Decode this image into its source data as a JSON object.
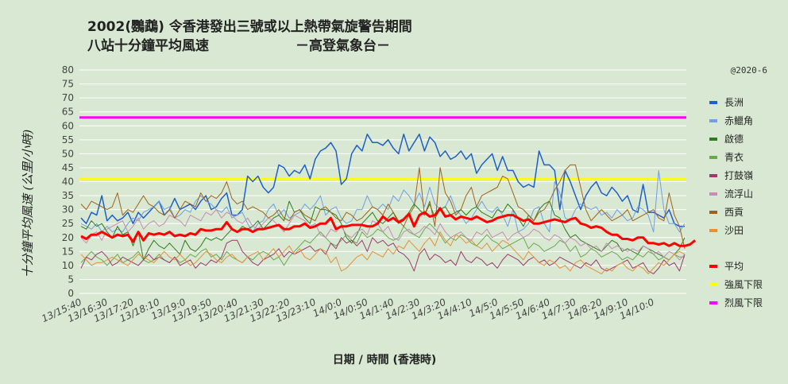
{
  "title_line1": "2002(鸚鵡)  令香港發出三號或以上熱帶氣旋警告期間",
  "title_line2": "八站十分鐘平均風速",
  "title_org": "－高登氣象台－",
  "watermark": "@2020-6",
  "colors": {
    "background": "#d8e8d2",
    "grid": "#ffffff",
    "strong_threshold": "#ffff00",
    "gale_threshold": "#ff00ff",
    "average": "#ff0000"
  },
  "chart_data": {
    "type": "line",
    "ylabel": "十分鐘平均風速 (公里/小時)",
    "xlabel": "日期 / 時間 (香港時)",
    "ylim": [
      0,
      80
    ],
    "yticks": [
      0,
      5,
      10,
      15,
      20,
      25,
      30,
      35,
      40,
      45,
      50,
      55,
      60,
      65,
      70,
      75,
      80
    ],
    "grid": true,
    "legend_position": "right",
    "xtick_labels": [
      "13/15:40",
      "13/16:30",
      "13/17:20",
      "13/18:10",
      "13/19:0",
      "13/19:50",
      "13/20:40",
      "13/21:30",
      "13/22:20",
      "13/23:10",
      "14/0:0",
      "14/0:50",
      "14/1:40",
      "14/2:30",
      "14/3:20",
      "14/4:10",
      "14/5:0",
      "14/5:50",
      "14/6:40",
      "14/7:30",
      "14/8:20",
      "14/9:10",
      "14/10:0"
    ],
    "x_start_label": "13/15:40",
    "x_step_minutes": 10,
    "thresholds": [
      {
        "name": "強風下限",
        "value": 41,
        "color": "#ffff00"
      },
      {
        "name": "烈風下限",
        "value": 63,
        "color": "#ff00ff"
      }
    ],
    "series": [
      {
        "name": "長洲",
        "color": "#1f5fc8",
        "width": 1.5,
        "values": [
          27,
          25,
          29,
          28,
          35,
          26,
          28,
          26,
          27,
          29,
          25,
          29,
          27,
          29,
          31,
          33,
          28,
          30,
          34,
          30,
          31,
          32,
          30,
          33,
          35,
          30,
          31,
          34,
          36,
          28,
          28,
          30,
          42,
          40,
          42,
          38,
          36,
          38,
          46,
          45,
          42,
          44,
          43,
          46,
          41,
          48,
          51,
          52,
          54,
          51,
          39,
          41,
          50,
          53,
          51,
          57,
          54,
          54,
          53,
          55,
          52,
          50,
          57,
          51,
          54,
          57,
          51,
          56,
          54,
          49,
          51,
          48,
          49,
          51,
          48,
          50,
          43,
          46,
          48,
          50,
          44,
          49,
          44,
          44,
          40,
          38,
          39,
          38,
          51,
          46,
          46,
          44,
          30,
          44,
          40,
          35,
          30,
          35,
          38,
          40,
          36,
          35,
          38,
          36,
          33,
          35,
          30,
          29,
          39,
          29,
          29,
          28,
          27,
          30,
          25,
          24,
          24
        ]
      },
      {
        "name": "赤鱲角",
        "color": "#6f9fe6",
        "width": 1,
        "values": [
          25,
          24,
          23,
          25,
          22,
          24,
          22,
          23,
          22,
          25,
          27,
          26,
          29,
          30,
          31,
          33,
          30,
          31,
          27,
          28,
          30,
          29,
          33,
          35,
          33,
          32,
          30,
          29,
          31,
          27,
          28,
          29,
          25,
          22,
          25,
          26,
          30,
          32,
          28,
          30,
          27,
          28,
          29,
          32,
          30,
          32,
          35,
          28,
          30,
          31,
          27,
          25,
          26,
          30,
          30,
          35,
          31,
          30,
          32,
          30,
          35,
          33,
          37,
          35,
          32,
          36,
          31,
          38,
          32,
          30,
          31,
          35,
          30,
          28,
          25,
          27,
          30,
          33,
          30,
          29,
          31,
          28,
          24,
          30,
          22,
          23,
          25,
          30,
          31,
          25,
          22,
          40,
          36,
          27,
          26,
          30,
          32,
          31,
          30,
          31,
          28,
          29,
          27,
          30,
          28,
          26,
          27,
          31,
          30,
          28,
          22,
          44,
          30,
          25,
          25,
          22,
          25
        ]
      },
      {
        "name": "啟德",
        "color": "#2e7d1e",
        "width": 1,
        "values": [
          24,
          23,
          26,
          24,
          25,
          22,
          20,
          24,
          21,
          22,
          17,
          22,
          12,
          16,
          19,
          17,
          16,
          18,
          16,
          14,
          19,
          16,
          15,
          17,
          20,
          19,
          20,
          19,
          21,
          23,
          22,
          24,
          23,
          24,
          26,
          23,
          25,
          27,
          28,
          26,
          33,
          29,
          30,
          27,
          25,
          31,
          30,
          30,
          29,
          28,
          25,
          20,
          18,
          21,
          25,
          27,
          29,
          26,
          25,
          27,
          29,
          25,
          26,
          29,
          32,
          30,
          28,
          32,
          27,
          30,
          31,
          28,
          29,
          30,
          28,
          30,
          31,
          29,
          28,
          27,
          30,
          29,
          32,
          30,
          27,
          24,
          28,
          26,
          30,
          32,
          33,
          28,
          27,
          23,
          20,
          21,
          19,
          18,
          17,
          16,
          15,
          17,
          19,
          18,
          15,
          16,
          15,
          14,
          17,
          16,
          15,
          14,
          13,
          12,
          14,
          16,
          20
        ]
      },
      {
        "name": "青衣",
        "color": "#6aa84f",
        "width": 1,
        "values": [
          11,
          13,
          15,
          13,
          12,
          10,
          12,
          14,
          11,
          12,
          13,
          15,
          12,
          11,
          12,
          14,
          12,
          11,
          13,
          11,
          12,
          14,
          13,
          15,
          16,
          13,
          14,
          12,
          15,
          13,
          12,
          11,
          13,
          12,
          14,
          15,
          14,
          12,
          13,
          10,
          13,
          15,
          17,
          19,
          18,
          20,
          22,
          20,
          18,
          17,
          19,
          21,
          19,
          18,
          22,
          20,
          21,
          23,
          22,
          20,
          19,
          20,
          24,
          22,
          21,
          20,
          23,
          25,
          23,
          21,
          18,
          20,
          19,
          21,
          20,
          18,
          17,
          19,
          21,
          19,
          18,
          16,
          17,
          18,
          19,
          20,
          16,
          18,
          17,
          15,
          16,
          17,
          19,
          18,
          15,
          17,
          13,
          14,
          16,
          15,
          13,
          14,
          15,
          14,
          12,
          13,
          12,
          14,
          13,
          15,
          14,
          12,
          13,
          12,
          14,
          13,
          13
        ]
      },
      {
        "name": "打鼓嶺",
        "color": "#9c3a6e",
        "width": 1,
        "values": [
          9,
          13,
          12,
          14,
          15,
          13,
          10,
          11,
          13,
          12,
          11,
          10,
          12,
          14,
          12,
          13,
          12,
          11,
          13,
          10,
          11,
          12,
          9,
          11,
          10,
          12,
          11,
          13,
          18,
          19,
          19,
          15,
          13,
          11,
          10,
          12,
          13,
          14,
          16,
          13,
          15,
          14,
          15,
          16,
          17,
          15,
          16,
          14,
          18,
          16,
          20,
          18,
          19,
          17,
          19,
          15,
          20,
          18,
          19,
          17,
          18,
          15,
          14,
          12,
          8,
          14,
          16,
          12,
          14,
          13,
          11,
          12,
          10,
          15,
          12,
          11,
          13,
          12,
          10,
          11,
          9,
          12,
          14,
          13,
          12,
          10,
          12,
          13,
          11,
          12,
          10,
          11,
          13,
          12,
          11,
          10,
          9,
          11,
          10,
          12,
          9,
          8,
          9,
          10,
          11,
          12,
          9,
          10,
          11,
          8,
          7,
          9,
          12,
          10,
          11,
          8,
          14
        ]
      },
      {
        "name": "流浮山",
        "color": "#c78bb5",
        "width": 1,
        "values": [
          20,
          18,
          21,
          22,
          19,
          23,
          24,
          25,
          26,
          22,
          24,
          27,
          23,
          25,
          26,
          24,
          25,
          28,
          27,
          26,
          24,
          28,
          27,
          26,
          29,
          28,
          30,
          27,
          29,
          28,
          26,
          25,
          27,
          24,
          23,
          25,
          27,
          26,
          24,
          22,
          25,
          28,
          27,
          26,
          24,
          25,
          21,
          20,
          23,
          22,
          24,
          21,
          20,
          22,
          23,
          21,
          26,
          25,
          22,
          24,
          20,
          19,
          22,
          23,
          21,
          22,
          24,
          23,
          21,
          25,
          22,
          20,
          21,
          22,
          20,
          19,
          22,
          21,
          23,
          20,
          21,
          22,
          19,
          21,
          22,
          20,
          21,
          23,
          22,
          20,
          19,
          21,
          20,
          18,
          20,
          19,
          17,
          18,
          16,
          17,
          15,
          18,
          16,
          17,
          16,
          15,
          16,
          15,
          17,
          16,
          14,
          15,
          13,
          15,
          14,
          12,
          14
        ]
      },
      {
        "name": "西貢",
        "color": "#a0621b",
        "width": 1,
        "values": [
          32,
          30,
          33,
          32,
          31,
          30,
          31,
          36,
          28,
          30,
          29,
          32,
          35,
          32,
          31,
          29,
          28,
          30,
          27,
          30,
          33,
          32,
          31,
          36,
          33,
          35,
          34,
          36,
          40,
          34,
          32,
          33,
          30,
          31,
          30,
          29,
          27,
          28,
          30,
          27,
          26,
          29,
          30,
          28,
          27,
          26,
          30,
          31,
          29,
          27,
          26,
          29,
          28,
          26,
          27,
          29,
          31,
          30,
          28,
          32,
          29,
          26,
          24,
          28,
          31,
          45,
          28,
          33,
          24,
          45,
          36,
          33,
          28,
          30,
          35,
          38,
          31,
          35,
          36,
          37,
          38,
          42,
          41,
          36,
          31,
          30,
          28,
          26,
          29,
          30,
          33,
          37,
          40,
          44,
          46,
          46,
          38,
          30,
          26,
          28,
          30,
          28,
          26,
          27,
          28,
          30,
          26,
          27,
          28,
          29,
          30,
          27,
          26,
          36,
          28,
          24,
          16
        ]
      },
      {
        "name": "沙田",
        "color": "#e6913a",
        "width": 1,
        "values": [
          14,
          12,
          10,
          11,
          11,
          12,
          13,
          12,
          11,
          10,
          12,
          14,
          13,
          12,
          11,
          13,
          15,
          13,
          12,
          14,
          12,
          10,
          11,
          13,
          15,
          14,
          12,
          11,
          13,
          14,
          12,
          11,
          13,
          14,
          15,
          12,
          14,
          16,
          13,
          15,
          17,
          14,
          16,
          13,
          12,
          14,
          16,
          15,
          11,
          13,
          8,
          9,
          11,
          13,
          14,
          12,
          15,
          14,
          13,
          16,
          14,
          17,
          16,
          19,
          17,
          15,
          18,
          20,
          17,
          22,
          19,
          17,
          21,
          20,
          18,
          19,
          17,
          16,
          18,
          15,
          17,
          19,
          18,
          16,
          14,
          12,
          15,
          13,
          11,
          10,
          12,
          11,
          9,
          10,
          8,
          11,
          12,
          10,
          9,
          8,
          7,
          9,
          8,
          10,
          11,
          9,
          8,
          10,
          9,
          7,
          9,
          11,
          10,
          12,
          14,
          15,
          14
        ]
      },
      {
        "name": "平均",
        "color": "#ff0000",
        "width": 3,
        "values": [
          20.5,
          19.5,
          21,
          21,
          22,
          21,
          20,
          21,
          20.5,
          21,
          18.5,
          22,
          19,
          21.5,
          21,
          21.5,
          21,
          22,
          20.5,
          21,
          20.5,
          21.5,
          21,
          23,
          22.5,
          22.5,
          23,
          23,
          25.5,
          23,
          22,
          23,
          23,
          22,
          23,
          23,
          23.5,
          24,
          24.5,
          23,
          23,
          24,
          24,
          25,
          23.5,
          24,
          25,
          25,
          27,
          23,
          24,
          24,
          24.5,
          24.5,
          24.5,
          24,
          24,
          25,
          27.5,
          26,
          27,
          25.5,
          26.5,
          28.5,
          24,
          28,
          29,
          27.5,
          28,
          30.5,
          27.5,
          28,
          26.5,
          27.5,
          27,
          26.5,
          27.5,
          26.5,
          25.5,
          26,
          27,
          27.5,
          28,
          28,
          27,
          26,
          26.5,
          25,
          25,
          25.5,
          26,
          26.5,
          26,
          25.5,
          26.5,
          27,
          25,
          24.5,
          23.5,
          24,
          23.5,
          22,
          21,
          21,
          19.5,
          19.5,
          19,
          20,
          20,
          18,
          18,
          17.5,
          18,
          17,
          18,
          17,
          17,
          17.5,
          19
        ]
      }
    ]
  }
}
